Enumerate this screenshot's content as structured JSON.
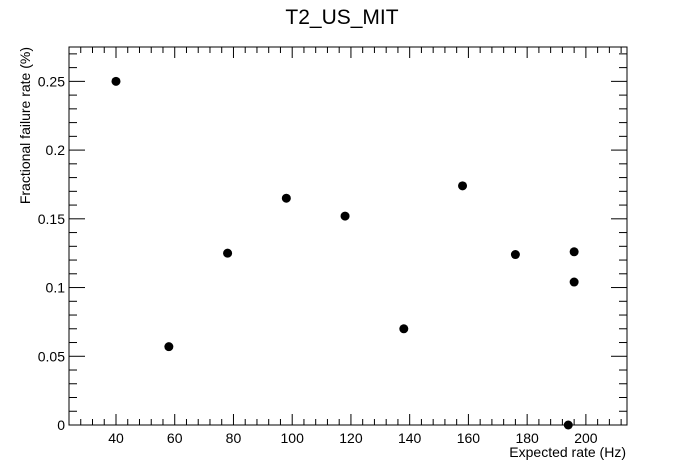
{
  "chart_data": {
    "type": "scatter",
    "title": "T2_US_MIT",
    "xlabel": "Expected rate (Hz)",
    "ylabel": "Fractional failure rate (%)",
    "xlim": [
      24,
      214
    ],
    "ylim": [
      0,
      0.275
    ],
    "x_ticks": [
      40,
      60,
      80,
      100,
      120,
      140,
      160,
      180,
      200
    ],
    "x_tick_labels": [
      "40",
      "60",
      "80",
      "100",
      "120",
      "140",
      "160",
      "180",
      "200"
    ],
    "y_ticks": [
      0,
      0.05,
      0.1,
      0.15,
      0.2,
      0.25
    ],
    "y_tick_labels": [
      "0",
      "0.05",
      "0.1",
      "0.15",
      "0.2",
      "0.25"
    ],
    "grid": false,
    "legend": "none",
    "marker_color": "#000000",
    "points": [
      {
        "x": 40,
        "y": 0.25
      },
      {
        "x": 58,
        "y": 0.057
      },
      {
        "x": 78,
        "y": 0.125
      },
      {
        "x": 98,
        "y": 0.165
      },
      {
        "x": 118,
        "y": 0.152
      },
      {
        "x": 138,
        "y": 0.07
      },
      {
        "x": 158,
        "y": 0.174
      },
      {
        "x": 176,
        "y": 0.124
      },
      {
        "x": 194,
        "y": 0.0
      },
      {
        "x": 196,
        "y": 0.126
      },
      {
        "x": 196,
        "y": 0.104
      }
    ]
  }
}
